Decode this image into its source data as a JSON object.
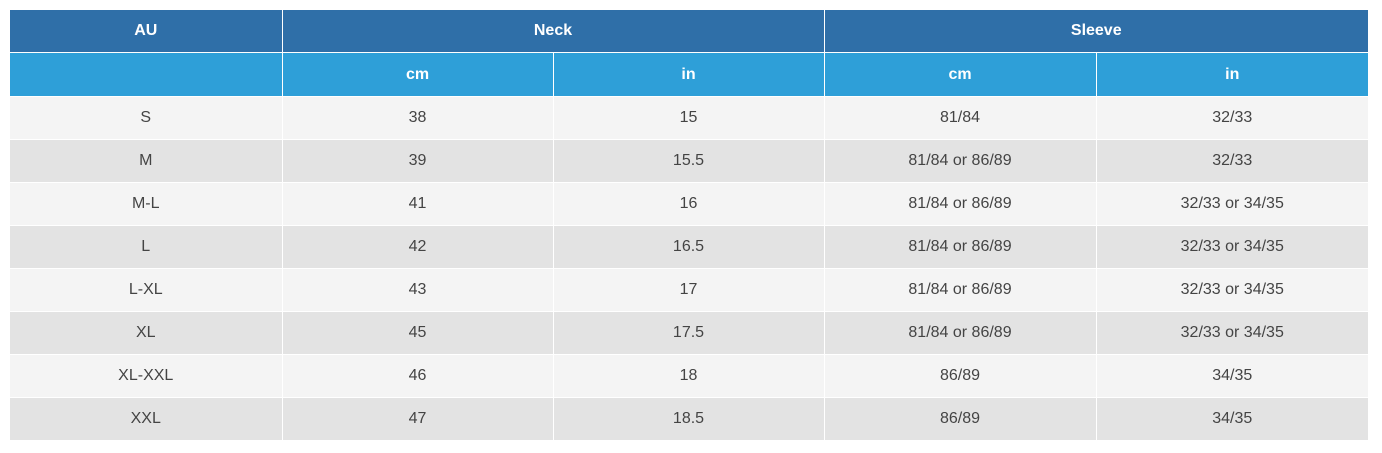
{
  "header": {
    "group_row": [
      "AU",
      "Neck",
      "Sleeve"
    ],
    "unit_row": [
      "",
      "cm",
      "in",
      "cm",
      "in"
    ]
  },
  "rows": [
    [
      "S",
      "38",
      "15",
      "81/84",
      "32/33"
    ],
    [
      "M",
      "39",
      "15.5",
      "81/84 or 86/89",
      "32/33"
    ],
    [
      "M-L",
      "41",
      "16",
      "81/84 or 86/89",
      "32/33 or 34/35"
    ],
    [
      "L",
      "42",
      "16.5",
      "81/84 or 86/89",
      "32/33 or 34/35"
    ],
    [
      "L-XL",
      "43",
      "17",
      "81/84 or 86/89",
      "32/33 or 34/35"
    ],
    [
      "XL",
      "45",
      "17.5",
      "81/84 or 86/89",
      "32/33 or 34/35"
    ],
    [
      "XL-XXL",
      "46",
      "18",
      "86/89",
      "34/35"
    ],
    [
      "XXL",
      "47",
      "18.5",
      "86/89",
      "34/35"
    ]
  ],
  "colors": {
    "header_dark": "#2f6fa8",
    "header_light": "#2e9fd8",
    "row_odd": "#f4f4f4",
    "row_even": "#e3e3e3",
    "text": "#444444"
  }
}
